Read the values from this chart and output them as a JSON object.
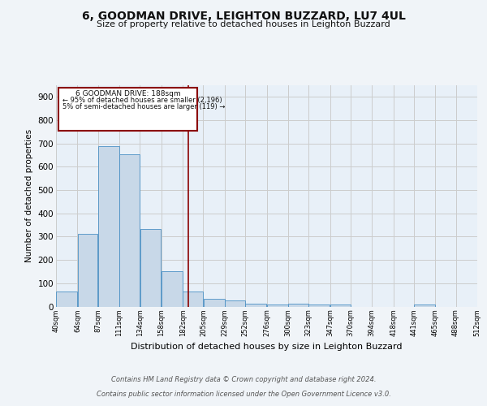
{
  "title": "6, GOODMAN DRIVE, LEIGHTON BUZZARD, LU7 4UL",
  "subtitle": "Size of property relative to detached houses in Leighton Buzzard",
  "xlabel": "Distribution of detached houses by size in Leighton Buzzard",
  "ylabel": "Number of detached properties",
  "footer_line1": "Contains HM Land Registry data © Crown copyright and database right 2024.",
  "footer_line2": "Contains public sector information licensed under the Open Government Licence v3.0.",
  "annotation_title": "6 GOODMAN DRIVE: 188sqm",
  "annotation_line2": "← 95% of detached houses are smaller (2,196)",
  "annotation_line3": "5% of semi-detached houses are larger (119) →",
  "bar_left_edges": [
    40,
    64,
    87,
    111,
    134,
    158,
    182,
    205,
    229,
    252,
    276,
    300,
    323,
    347,
    370,
    394,
    418,
    441,
    465,
    488
  ],
  "bar_widths": [
    24,
    23,
    24,
    23,
    24,
    24,
    23,
    24,
    23,
    24,
    24,
    23,
    24,
    23,
    24,
    24,
    23,
    24,
    23,
    24
  ],
  "bar_heights": [
    63,
    311,
    688,
    652,
    333,
    153,
    65,
    33,
    25,
    12,
    8,
    12,
    8,
    7,
    0,
    0,
    0,
    8,
    0,
    0
  ],
  "tick_labels": [
    "40sqm",
    "64sqm",
    "87sqm",
    "111sqm",
    "134sqm",
    "158sqm",
    "182sqm",
    "205sqm",
    "229sqm",
    "252sqm",
    "276sqm",
    "300sqm",
    "323sqm",
    "347sqm",
    "370sqm",
    "394sqm",
    "418sqm",
    "441sqm",
    "465sqm",
    "488sqm",
    "512sqm"
  ],
  "bar_color": "#c8d8e8",
  "bar_edge_color": "#4a90c4",
  "vline_x": 188,
  "vline_color": "#8b0000",
  "annotation_box_color": "#8b0000",
  "background_color": "#f0f4f8",
  "plot_bg_color": "#e8f0f8",
  "grid_color": "#cccccc",
  "ylim": [
    0,
    950
  ],
  "xlim": [
    40,
    512
  ],
  "yticks": [
    0,
    100,
    200,
    300,
    400,
    500,
    600,
    700,
    800,
    900
  ]
}
